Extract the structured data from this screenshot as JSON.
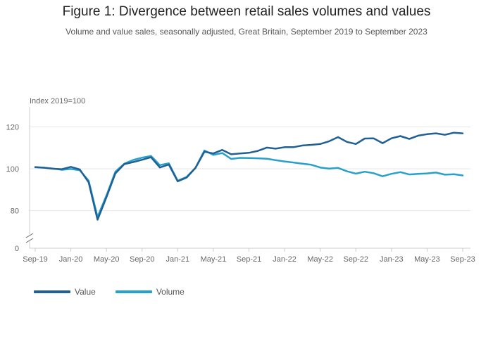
{
  "header": {
    "title": "Figure 1: Divergence between retail sales volumes and values",
    "subtitle": "Volume and value sales, seasonally adjusted, Great Britain, September 2019 to September 2023"
  },
  "colors": {
    "value": "#206095",
    "volume": "#27a0cc",
    "grid": "#e6e6e6",
    "axis": "#cccccc"
  },
  "chart_data": {
    "type": "line",
    "title": "Figure 1: Divergence between retail sales volumes and values",
    "ylabel": "Index 2019=100",
    "xlabel": "",
    "ylim": [
      70,
      130
    ],
    "broken_axis_base": "0",
    "y_ticks": [
      "80",
      "100",
      "120"
    ],
    "x_ticks": [
      "Sep-19",
      "Jan-20",
      "May-20",
      "Sep-20",
      "Jan-21",
      "May-21",
      "Sep-21",
      "Jan-22",
      "May-22",
      "Sep-22",
      "Jan-23",
      "May-23",
      "Sep-23"
    ],
    "x": [
      "Sep-19",
      "Oct-19",
      "Nov-19",
      "Dec-19",
      "Jan-20",
      "Feb-20",
      "Mar-20",
      "Apr-20",
      "May-20",
      "Jun-20",
      "Jul-20",
      "Aug-20",
      "Sep-20",
      "Oct-20",
      "Nov-20",
      "Dec-20",
      "Jan-21",
      "Feb-21",
      "Mar-21",
      "Apr-21",
      "May-21",
      "Jun-21",
      "Jul-21",
      "Aug-21",
      "Sep-21",
      "Oct-21",
      "Nov-21",
      "Dec-21",
      "Jan-22",
      "Feb-22",
      "Mar-22",
      "Apr-22",
      "May-22",
      "Jun-22",
      "Jul-22",
      "Aug-22",
      "Sep-22",
      "Oct-22",
      "Nov-22",
      "Dec-22",
      "Jan-23",
      "Feb-23",
      "Mar-23",
      "Apr-23",
      "May-23",
      "Jun-23",
      "Jul-23",
      "Aug-23",
      "Sep-23"
    ],
    "series": [
      {
        "name": "Value",
        "values": [
          100.8,
          100.5,
          100.0,
          99.8,
          100.9,
          99.7,
          93.5,
          75.7,
          86.5,
          97.8,
          102.2,
          103.2,
          104.3,
          105.5,
          100.6,
          102.0,
          94.0,
          95.8,
          100.4,
          108.1,
          107.3,
          109.0,
          106.9,
          107.3,
          107.6,
          108.5,
          110.1,
          109.6,
          110.3,
          110.3,
          111.1,
          111.4,
          111.8,
          113.1,
          115.1,
          112.8,
          111.8,
          114.4,
          114.5,
          112.2,
          114.5,
          115.6,
          114.2,
          115.8,
          116.5,
          116.9,
          116.2,
          117.2,
          116.9
        ]
      },
      {
        "name": "Volume",
        "values": [
          100.7,
          100.5,
          100.1,
          99.5,
          99.9,
          99.3,
          94.3,
          77.0,
          87.3,
          98.6,
          102.4,
          104.2,
          105.3,
          106.1,
          101.7,
          102.6,
          94.3,
          96.1,
          100.5,
          108.7,
          106.6,
          107.5,
          104.7,
          105.2,
          105.1,
          105.0,
          104.8,
          104.1,
          103.5,
          103.0,
          102.4,
          101.9,
          100.6,
          100.1,
          100.4,
          98.8,
          97.7,
          98.6,
          97.9,
          96.4,
          97.6,
          98.4,
          97.3,
          97.6,
          97.8,
          98.2,
          97.2,
          97.4,
          96.8
        ]
      }
    ],
    "legend": "bottom-left",
    "grid": true
  }
}
